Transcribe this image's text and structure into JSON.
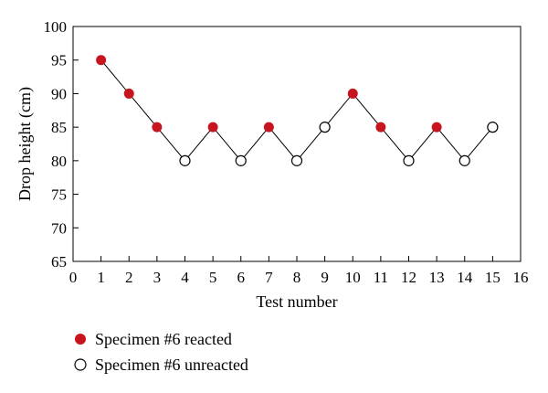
{
  "chart_data": {
    "type": "scatter",
    "xlabel": "Test number",
    "ylabel": "Drop height (cm)",
    "xlim": [
      0,
      16
    ],
    "ylim": [
      65,
      100
    ],
    "x_ticks": [
      0,
      1,
      2,
      3,
      4,
      5,
      6,
      7,
      8,
      9,
      10,
      11,
      12,
      13,
      14,
      15,
      16
    ],
    "y_ticks": [
      65,
      70,
      75,
      80,
      85,
      90,
      95,
      100
    ],
    "grid": false,
    "legend_position": "bottom-left",
    "x": [
      1,
      2,
      3,
      4,
      5,
      6,
      7,
      8,
      9,
      10,
      11,
      12,
      13,
      14,
      15
    ],
    "y": [
      95,
      90,
      85,
      80,
      85,
      80,
      85,
      80,
      85,
      90,
      85,
      80,
      85,
      80,
      85
    ],
    "reacted": [
      true,
      true,
      true,
      false,
      true,
      false,
      true,
      false,
      false,
      true,
      true,
      false,
      true,
      false,
      false
    ],
    "series": [
      {
        "name": "Specimen #6 reacted",
        "marker": "filled-circle",
        "color": "#c8141e"
      },
      {
        "name": "Specimen #6 unreacted",
        "marker": "open-circle",
        "color": "#000000"
      }
    ],
    "line_color": "#000000"
  }
}
